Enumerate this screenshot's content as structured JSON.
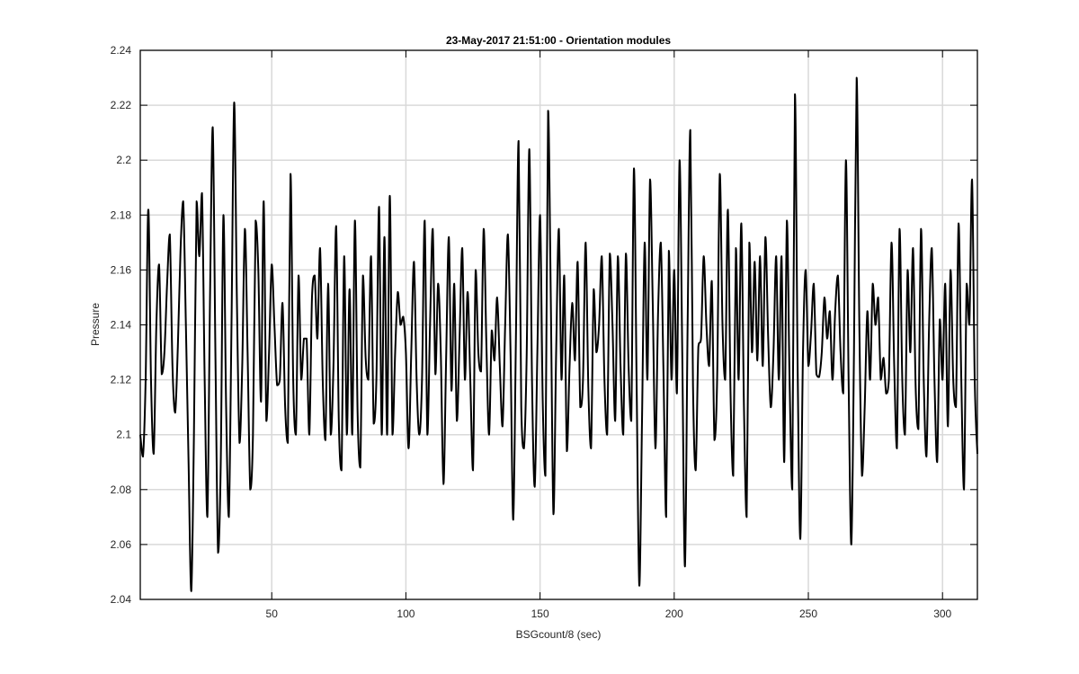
{
  "chart_data": {
    "type": "line",
    "title": "23-May-2017 21:51:00 - Orientation modules",
    "xlabel": "BSGcount/8 (sec)",
    "ylabel": "Pressure",
    "xlim": [
      1,
      313
    ],
    "ylim": [
      2.04,
      2.24
    ],
    "xticks": [
      50,
      100,
      150,
      200,
      250,
      300
    ],
    "xtick_labels": [
      "50",
      "100",
      "150",
      "200",
      "250",
      "300"
    ],
    "yticks": [
      2.04,
      2.06,
      2.08,
      2.1,
      2.12,
      2.14,
      2.16,
      2.18,
      2.2,
      2.22,
      2.24
    ],
    "ytick_labels": [
      "2.04",
      "2.06",
      "2.08",
      "2.1",
      "2.12",
      "2.14",
      "2.16",
      "2.18",
      "2.2",
      "2.22",
      "2.24"
    ],
    "grid": true,
    "line_color": "#000000",
    "series": [
      {
        "name": "",
        "x": [
          1,
          2,
          3,
          4,
          5,
          6,
          7,
          8,
          9,
          10,
          11,
          12,
          13,
          14,
          15,
          16,
          17,
          18,
          19,
          20,
          21,
          22,
          23,
          24,
          25,
          26,
          27,
          28,
          29,
          30,
          31,
          32,
          33,
          34,
          35,
          36,
          37,
          38,
          39,
          40,
          41,
          42,
          43,
          44,
          45,
          46,
          47,
          48,
          49,
          50,
          51,
          52,
          53,
          54,
          55,
          56,
          57,
          58,
          59,
          60,
          61,
          62,
          63,
          64,
          65,
          66,
          67,
          68,
          69,
          70,
          71,
          72,
          73,
          74,
          75,
          76,
          77,
          78,
          79,
          80,
          81,
          82,
          83,
          84,
          85,
          86,
          87,
          88,
          89,
          90,
          91,
          92,
          93,
          94,
          95,
          96,
          97,
          98,
          99,
          100,
          101,
          102,
          103,
          104,
          105,
          106,
          107,
          108,
          109,
          110,
          111,
          112,
          113,
          114,
          115,
          116,
          117,
          118,
          119,
          120,
          121,
          122,
          123,
          124,
          125,
          126,
          127,
          128,
          129,
          130,
          131,
          132,
          133,
          134,
          135,
          136,
          137,
          138,
          139,
          140,
          141,
          142,
          143,
          144,
          145,
          146,
          147,
          148,
          149,
          150,
          151,
          152,
          153,
          154,
          155,
          156,
          157,
          158,
          159,
          160,
          161,
          162,
          163,
          164,
          165,
          166,
          167,
          168,
          169,
          170,
          171,
          172,
          173,
          174,
          175,
          176,
          177,
          178,
          179,
          180,
          181,
          182,
          183,
          184,
          185,
          186,
          187,
          188,
          189,
          190,
          191,
          192,
          193,
          194,
          195,
          196,
          197,
          198,
          199,
          200,
          201,
          202,
          203,
          204,
          205,
          206,
          207,
          208,
          209,
          210,
          211,
          212,
          213,
          214,
          215,
          216,
          217,
          218,
          219,
          220,
          221,
          222,
          223,
          224,
          225,
          226,
          227,
          228,
          229,
          230,
          231,
          232,
          233,
          234,
          235,
          236,
          237,
          238,
          239,
          240,
          241,
          242,
          243,
          244,
          245,
          246,
          247,
          248,
          249,
          250,
          251,
          252,
          253,
          254,
          255,
          256,
          257,
          258,
          259,
          260,
          261,
          262,
          263,
          264,
          265,
          266,
          267,
          268,
          269,
          270,
          271,
          272,
          273,
          274,
          275,
          276,
          277,
          278,
          279,
          280,
          281,
          282,
          283,
          284,
          285,
          286,
          287,
          288,
          289,
          290,
          291,
          292,
          293,
          294,
          295,
          296,
          297,
          298,
          299,
          300,
          301,
          302,
          303,
          304,
          305,
          306,
          307,
          308,
          309,
          310,
          311,
          312,
          313
        ],
        "y": [
          2.1,
          2.092,
          2.12,
          2.182,
          2.12,
          2.093,
          2.14,
          2.162,
          2.122,
          2.13,
          2.155,
          2.173,
          2.125,
          2.108,
          2.132,
          2.167,
          2.185,
          2.14,
          2.09,
          2.043,
          2.1,
          2.185,
          2.165,
          2.188,
          2.12,
          2.07,
          2.15,
          2.212,
          2.13,
          2.057,
          2.09,
          2.18,
          2.11,
          2.07,
          2.14,
          2.221,
          2.15,
          2.097,
          2.125,
          2.175,
          2.13,
          2.08,
          2.1,
          2.178,
          2.16,
          2.112,
          2.185,
          2.105,
          2.13,
          2.162,
          2.14,
          2.118,
          2.12,
          2.148,
          2.11,
          2.097,
          2.195,
          2.12,
          2.1,
          2.158,
          2.12,
          2.135,
          2.135,
          2.1,
          2.15,
          2.158,
          2.135,
          2.168,
          2.12,
          2.098,
          2.155,
          2.1,
          2.125,
          2.176,
          2.105,
          2.087,
          2.165,
          2.1,
          2.153,
          2.1,
          2.178,
          2.108,
          2.088,
          2.158,
          2.128,
          2.12,
          2.165,
          2.104,
          2.12,
          2.183,
          2.1,
          2.172,
          2.1,
          2.187,
          2.1,
          2.13,
          2.152,
          2.14,
          2.143,
          2.13,
          2.095,
          2.13,
          2.163,
          2.12,
          2.1,
          2.12,
          2.178,
          2.1,
          2.14,
          2.175,
          2.122,
          2.155,
          2.13,
          2.082,
          2.128,
          2.172,
          2.116,
          2.155,
          2.105,
          2.135,
          2.168,
          2.12,
          2.152,
          2.12,
          2.087,
          2.16,
          2.13,
          2.123,
          2.175,
          2.133,
          2.1,
          2.138,
          2.127,
          2.15,
          2.125,
          2.103,
          2.14,
          2.173,
          2.13,
          2.069,
          2.135,
          2.207,
          2.11,
          2.095,
          2.128,
          2.204,
          2.12,
          2.081,
          2.13,
          2.18,
          2.112,
          2.085,
          2.218,
          2.15,
          2.071,
          2.13,
          2.175,
          2.12,
          2.158,
          2.094,
          2.125,
          2.148,
          2.127,
          2.163,
          2.11,
          2.12,
          2.17,
          2.117,
          2.095,
          2.153,
          2.13,
          2.14,
          2.165,
          2.12,
          2.1,
          2.166,
          2.14,
          2.105,
          2.165,
          2.125,
          2.1,
          2.166,
          2.125,
          2.105,
          2.197,
          2.118,
          2.045,
          2.105,
          2.17,
          2.12,
          2.193,
          2.148,
          2.095,
          2.145,
          2.17,
          2.123,
          2.07,
          2.167,
          2.12,
          2.16,
          2.115,
          2.2,
          2.13,
          2.052,
          2.14,
          2.211,
          2.118,
          2.087,
          2.132,
          2.135,
          2.165,
          2.14,
          2.125,
          2.156,
          2.098,
          2.12,
          2.195,
          2.14,
          2.12,
          2.182,
          2.115,
          2.085,
          2.168,
          2.12,
          2.177,
          2.11,
          2.07,
          2.17,
          2.13,
          2.163,
          2.127,
          2.165,
          2.125,
          2.172,
          2.136,
          2.11,
          2.13,
          2.165,
          2.12,
          2.165,
          2.09,
          2.178,
          2.12,
          2.08,
          2.224,
          2.125,
          2.062,
          2.13,
          2.16,
          2.125,
          2.137,
          2.155,
          2.122,
          2.121,
          2.13,
          2.15,
          2.135,
          2.145,
          2.12,
          2.145,
          2.158,
          2.13,
          2.115,
          2.2,
          2.12,
          2.06,
          2.13,
          2.23,
          2.14,
          2.085,
          2.11,
          2.145,
          2.12,
          2.155,
          2.14,
          2.15,
          2.12,
          2.128,
          2.115,
          2.12,
          2.17,
          2.125,
          2.095,
          2.175,
          2.12,
          2.1,
          2.16,
          2.13,
          2.168,
          2.117,
          2.102,
          2.175,
          2.12,
          2.092,
          2.14,
          2.168,
          2.12,
          2.09,
          2.142,
          2.12,
          2.155,
          2.103,
          2.16,
          2.12,
          2.11,
          2.177,
          2.12,
          2.08,
          2.155,
          2.14,
          2.193,
          2.12,
          2.093
        ]
      }
    ]
  }
}
